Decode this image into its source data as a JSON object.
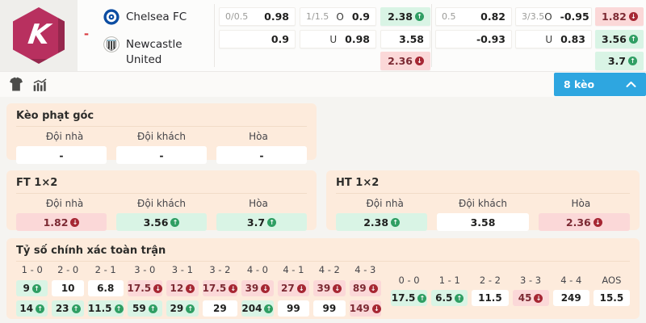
{
  "brand": {
    "logo_letter": "K",
    "brand_color": "#b8305f"
  },
  "header": {
    "score_dash": "-",
    "home_team": "Chelsea FC",
    "away_team": "Newcastle United"
  },
  "top_odds": {
    "cells": [
      {
        "col": 1,
        "row": 1,
        "label": "0/0.5",
        "value": "0.98"
      },
      {
        "col": 1,
        "row": 2,
        "value": "0.9"
      },
      {
        "col": 2,
        "row": 1,
        "label": "1/1.5",
        "side": "O",
        "value": "0.9"
      },
      {
        "col": 2,
        "row": 2,
        "side": "U",
        "value": "0.98"
      },
      {
        "col": 3,
        "row": 1,
        "value": "2.38",
        "trend": "up",
        "tone": "green"
      },
      {
        "col": 3,
        "row": 2,
        "value": "3.58"
      },
      {
        "col": 3,
        "row": 3,
        "value": "2.36",
        "trend": "down",
        "tone": "pink"
      },
      {
        "col": 4,
        "row": 1,
        "label": "0.5",
        "value": "0.82"
      },
      {
        "col": 4,
        "row": 2,
        "value": "-0.93"
      },
      {
        "col": 5,
        "row": 1,
        "label": "3/3.5",
        "side": "O",
        "value": "-0.95"
      },
      {
        "col": 5,
        "row": 2,
        "side": "U",
        "value": "0.83"
      },
      {
        "col": 6,
        "row": 1,
        "value": "1.82",
        "trend": "down",
        "tone": "pink"
      },
      {
        "col": 6,
        "row": 2,
        "value": "3.56",
        "trend": "up",
        "tone": "green"
      },
      {
        "col": 6,
        "row": 3,
        "value": "3.7",
        "trend": "up",
        "tone": "green"
      }
    ]
  },
  "toolbar": {
    "icons": [
      "jersey-icon",
      "stats-icon"
    ],
    "markets_button_label": "8 kèo"
  },
  "sections": {
    "corner": {
      "title": "Kèo phạt góc",
      "headers": [
        "Đội nhà",
        "Đội khách",
        "Hòa"
      ],
      "cells": [
        {
          "value": "-"
        },
        {
          "value": "-"
        },
        {
          "value": "-"
        }
      ]
    },
    "ft": {
      "title": "FT 1×2",
      "headers": [
        "Đội nhà",
        "Đội khách",
        "Hòa"
      ],
      "cells": [
        {
          "value": "1.82",
          "trend": "down",
          "tone": "pink"
        },
        {
          "value": "3.56",
          "trend": "up",
          "tone": "green"
        },
        {
          "value": "3.7",
          "trend": "up",
          "tone": "green"
        }
      ]
    },
    "ht": {
      "title": "HT 1×2",
      "headers": [
        "Đội nhà",
        "Đội khách",
        "Hòa"
      ],
      "cells": [
        {
          "value": "2.38",
          "trend": "up",
          "tone": "green"
        },
        {
          "value": "3.58"
        },
        {
          "value": "2.36",
          "trend": "down",
          "tone": "pink"
        }
      ]
    },
    "correct_score": {
      "title": "Tỷ số chính xác toàn trận",
      "main_columns": [
        "1 - 0",
        "2 - 0",
        "2 - 1",
        "3 - 0",
        "3 - 1",
        "3 - 2",
        "4 - 0",
        "4 - 1",
        "4 - 2",
        "4 - 3"
      ],
      "row1": [
        {
          "value": "9",
          "trend": "up",
          "tone": "green"
        },
        {
          "value": "10"
        },
        {
          "value": "6.8"
        },
        {
          "value": "17.5",
          "trend": "down",
          "tone": "pink"
        },
        {
          "value": "12",
          "trend": "down",
          "tone": "pink"
        },
        {
          "value": "17.5",
          "trend": "down",
          "tone": "pink"
        },
        {
          "value": "39",
          "trend": "down",
          "tone": "pink"
        },
        {
          "value": "27",
          "trend": "down",
          "tone": "pink"
        },
        {
          "value": "39",
          "trend": "down",
          "tone": "pink"
        },
        {
          "value": "89",
          "trend": "down",
          "tone": "pink"
        }
      ],
      "row2": [
        {
          "value": "14",
          "trend": "up",
          "tone": "green"
        },
        {
          "value": "23",
          "trend": "up",
          "tone": "green"
        },
        {
          "value": "11.5",
          "trend": "up",
          "tone": "green"
        },
        {
          "value": "59",
          "trend": "up",
          "tone": "green"
        },
        {
          "value": "29",
          "trend": "up",
          "tone": "green"
        },
        {
          "value": "29"
        },
        {
          "value": "204",
          "trend": "up",
          "tone": "green"
        },
        {
          "value": "99"
        },
        {
          "value": "99"
        },
        {
          "value": "149",
          "trend": "down",
          "tone": "pink"
        }
      ],
      "draw_columns": [
        "0 - 0",
        "1 - 1",
        "2 - 2",
        "3 - 3",
        "4 - 4",
        "AOS"
      ],
      "draw_values": [
        {
          "value": "17.5",
          "trend": "up",
          "tone": "green"
        },
        {
          "value": "6.5",
          "trend": "up",
          "tone": "green"
        },
        {
          "value": "11.5"
        },
        {
          "value": "45",
          "trend": "down",
          "tone": "pink"
        },
        {
          "value": "249"
        },
        {
          "value": "15.5"
        }
      ]
    }
  },
  "colors": {
    "accent_blue": "#2ea6e0",
    "up_green": "#2f9e63",
    "down_red": "#a62733",
    "green_cell_bg": "#d9f4e5",
    "pink_cell_bg": "#fbd8d8",
    "card_bg": "#fdebdc"
  }
}
